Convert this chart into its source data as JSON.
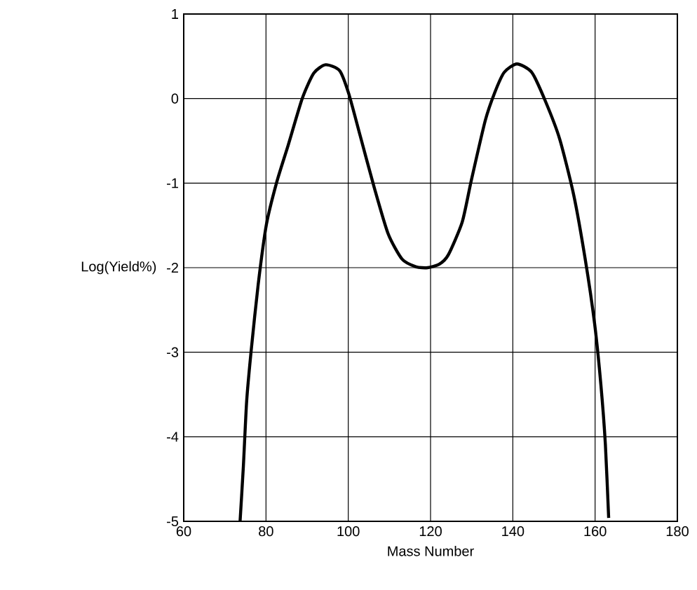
{
  "chart_data": {
    "type": "line",
    "xlabel": "Mass Number",
    "ylabel": "Log(Yield%)",
    "xlim": [
      60,
      180
    ],
    "ylim": [
      -5,
      1
    ],
    "xticks": [
      60,
      80,
      100,
      120,
      140,
      160,
      180
    ],
    "yticks": [
      -5,
      -4,
      -3,
      -2,
      -1,
      0,
      1
    ],
    "grid": true,
    "marker": "none",
    "line_style": "solid",
    "series": [
      {
        "color": "#000000",
        "x": [
          73.7,
          74.5,
          75.3,
          76.4,
          78.1,
          80.1,
          82.6,
          85.4,
          88.8,
          91.6,
          94.5,
          97.9,
          100.1,
          102.9,
          106.3,
          109.7,
          113.1,
          116.5,
          119.3,
          122.1,
          124.3,
          127.7,
          129.9,
          133.3,
          135.6,
          137.9,
          141.0,
          144.6,
          148.0,
          151.4,
          154.8,
          157.6,
          159.9,
          161.4,
          162.5,
          163.3
        ],
        "values": [
          -5,
          -4.35,
          -3.58,
          -2.98,
          -2.2,
          -1.49,
          -0.99,
          -0.55,
          0,
          0.3,
          0.4,
          0.33,
          0.06,
          -0.44,
          -1.05,
          -1.6,
          -1.9,
          -1.99,
          -2.0,
          -1.96,
          -1.85,
          -1.46,
          -0.97,
          -0.26,
          0.07,
          0.31,
          0.41,
          0.31,
          -0.04,
          -0.48,
          -1.14,
          -1.9,
          -2.67,
          -3.38,
          -4.09,
          -4.96
        ]
      }
    ]
  }
}
